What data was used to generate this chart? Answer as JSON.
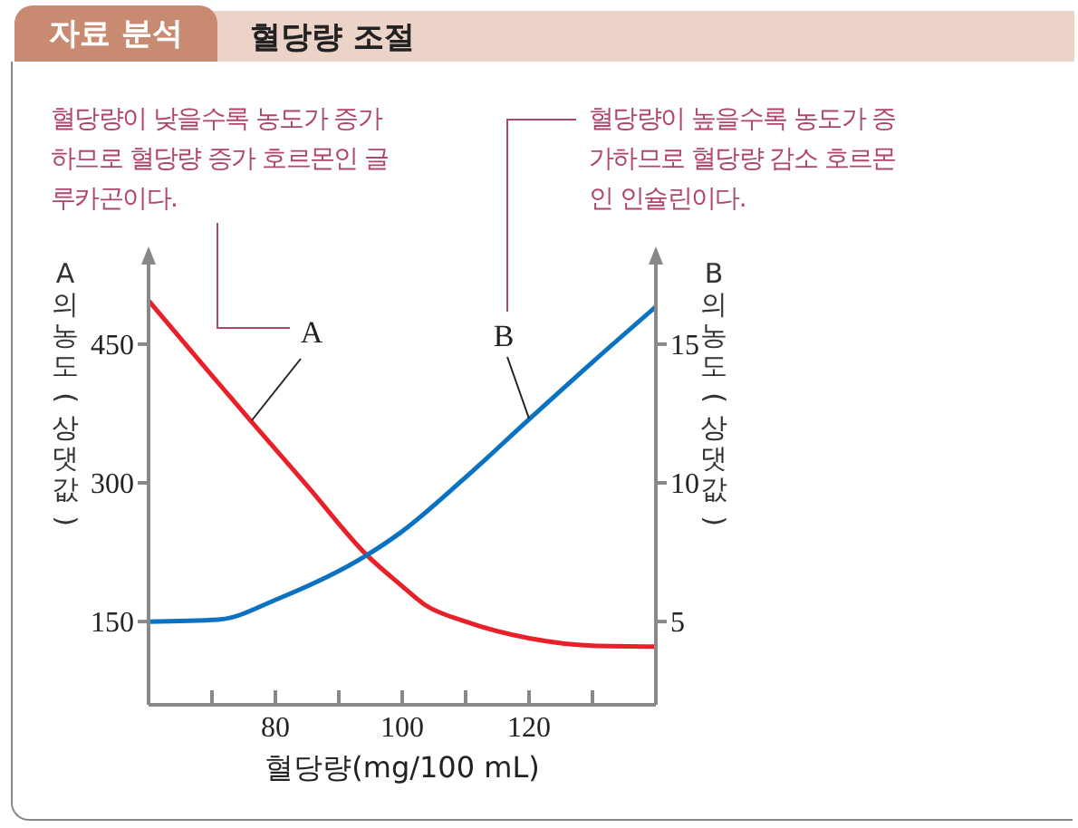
{
  "chart_data": {
    "type": "line",
    "title": "자료 분석",
    "subtitle": "혈당량 조절",
    "xlabel": "혈당량(mg/100 mL)",
    "ylabel": "A의 농도(상댓값)",
    "y2label": "B의 농도(상댓값)",
    "x": [
      60,
      70,
      76,
      85,
      94.4,
      99.7,
      103.6,
      110,
      120,
      130,
      140
    ],
    "series": [
      {
        "name": "A",
        "color": "#e8202a",
        "values": [
          497,
          416,
          368,
          297,
          222,
          190,
          168,
          150,
          132,
          124,
          123
        ]
      },
      {
        "name": "B",
        "color": "#0a72c0",
        "axis": "y2",
        "x": [
          60,
          71,
          80.5,
          94.4,
          99.7,
          110,
          120,
          130,
          140
        ],
        "values": [
          5.0,
          5.07,
          5.83,
          7.39,
          8.2,
          10.2,
          12.29,
          14.35,
          16.35
        ]
      }
    ],
    "xlim": [
      60,
      140
    ],
    "xticks": [
      {
        "value": 70,
        "label": null
      },
      80,
      {
        "value": 90,
        "label": null
      },
      100,
      {
        "value": 110,
        "label": null
      },
      120,
      {
        "value": 130,
        "label": null
      }
    ],
    "ylim": [
      60,
      540
    ],
    "yticks": [
      150,
      300,
      450
    ],
    "y2lim": [
      2,
      18
    ],
    "y2ticks": [
      5,
      10,
      15
    ],
    "annotations": [
      "혈당량이 낮을수록 농도가 증가하므로 혈당량 증가 호르몬인 글루카곤이다.",
      "혈당량이 높을수록 농도가 증가하므로 혈당량 감소 호르몬인 인슐린이다."
    ],
    "grid": false,
    "marker": "none",
    "line_style": "solid"
  }
}
